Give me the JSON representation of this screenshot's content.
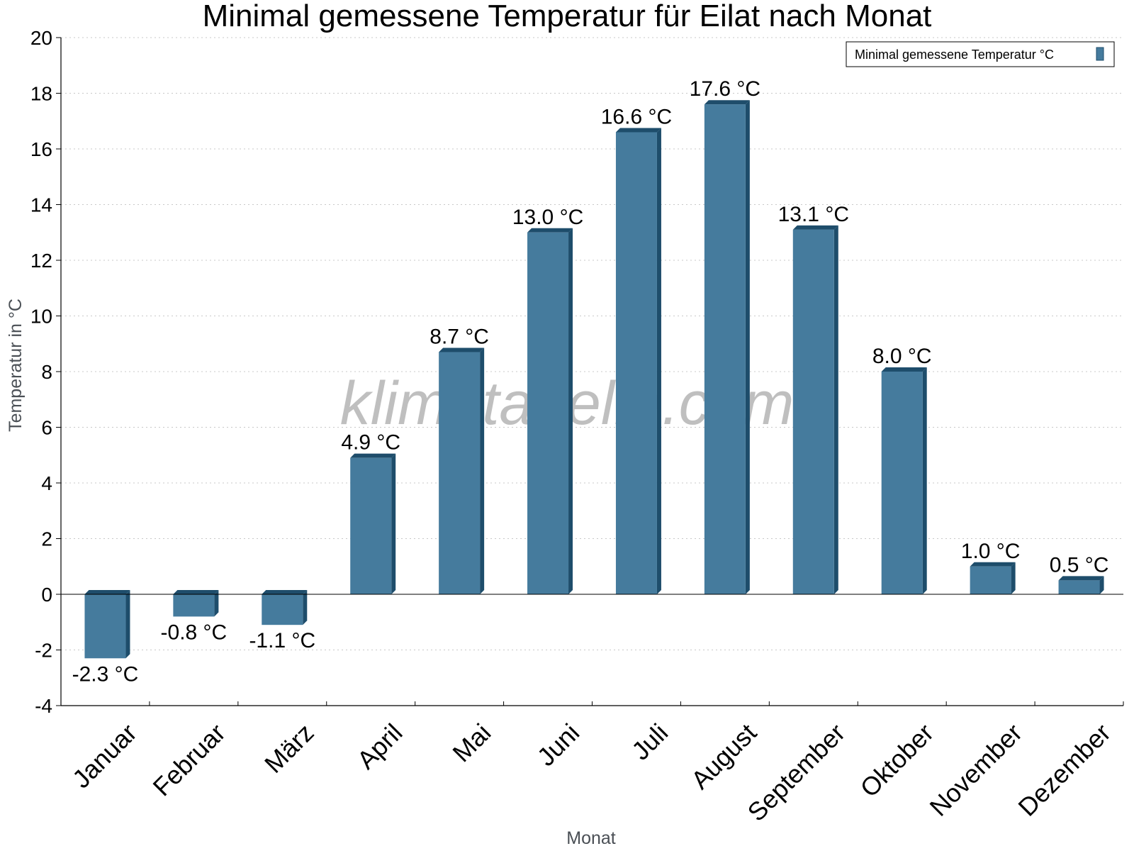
{
  "chart_data": {
    "type": "bar",
    "title": "Minimal gemessene Temperatur für Eilat nach Monat",
    "xlabel": "Monat",
    "ylabel": "Temperatur in °C",
    "ylim": [
      -4,
      20
    ],
    "yticks": [
      -4,
      -2,
      0,
      2,
      4,
      6,
      8,
      10,
      12,
      14,
      16,
      18,
      20
    ],
    "grid": true,
    "legend_position": "top-right",
    "categories": [
      "Januar",
      "Februar",
      "März",
      "April",
      "Mai",
      "Juni",
      "Juli",
      "August",
      "September",
      "Oktober",
      "November",
      "Dezember"
    ],
    "series": [
      {
        "name": "Minimal gemessene Temperatur °C",
        "values": [
          -2.3,
          -0.8,
          -1.1,
          4.9,
          8.7,
          13.0,
          16.6,
          17.6,
          13.1,
          8.0,
          1.0,
          0.5
        ],
        "labels": [
          "-2.3 °C",
          "-0.8 °C",
          "-1.1 °C",
          "4.9 °C",
          "8.7 °C",
          "13.0 °C",
          "16.6 °C",
          "17.6 °C",
          "13.1 °C",
          "8.0 °C",
          "1.0 °C",
          "0.5 °C"
        ],
        "color": "#457b9d",
        "side_color": "#1e4d6b"
      }
    ]
  },
  "watermark": "klimatabelle.com"
}
